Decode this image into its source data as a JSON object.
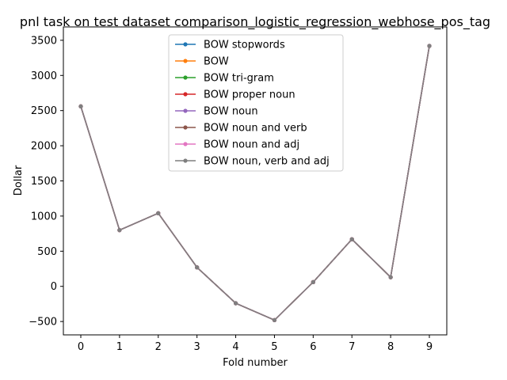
{
  "chart_data": {
    "type": "line",
    "title": "pnl task on test dataset comparison_logistic_regression_webhose_pos_tag",
    "xlabel": "Fold number",
    "ylabel": "Dollar",
    "x": [
      0,
      1,
      2,
      3,
      4,
      5,
      6,
      7,
      8,
      9
    ],
    "xticks": [
      "0",
      "1",
      "2",
      "3",
      "4",
      "5",
      "6",
      "7",
      "8",
      "9"
    ],
    "yticks": [
      "−500",
      "0",
      "500",
      "1000",
      "1500",
      "2000",
      "2500",
      "3000",
      "3500"
    ],
    "ytick_values": [
      -500,
      0,
      500,
      1000,
      1500,
      2000,
      2500,
      3000,
      3500
    ],
    "xlim": [
      -0.45,
      9.45
    ],
    "ylim": [
      -690,
      3690
    ],
    "grid": false,
    "legend_position": "upper center",
    "series": [
      {
        "name": "BOW stopwords",
        "color": "#1f77b4",
        "values": [
          2560,
          800,
          1040,
          270,
          -240,
          -480,
          60,
          670,
          130,
          3420
        ]
      },
      {
        "name": "BOW",
        "color": "#ff7f0e",
        "values": [
          2560,
          800,
          1040,
          270,
          -240,
          -480,
          60,
          670,
          130,
          3420
        ]
      },
      {
        "name": "BOW tri-gram",
        "color": "#2ca02c",
        "values": [
          2560,
          800,
          1040,
          270,
          -240,
          -480,
          60,
          670,
          130,
          3420
        ]
      },
      {
        "name": "BOW proper noun",
        "color": "#d62728",
        "values": [
          2560,
          800,
          1040,
          270,
          -240,
          -480,
          60,
          670,
          130,
          3420
        ]
      },
      {
        "name": "BOW noun",
        "color": "#9467bd",
        "values": [
          2560,
          800,
          1040,
          270,
          -240,
          -480,
          60,
          670,
          130,
          3420
        ]
      },
      {
        "name": "BOW noun and verb",
        "color": "#8c564b",
        "values": [
          2560,
          800,
          1040,
          270,
          -240,
          -480,
          60,
          670,
          130,
          3420
        ]
      },
      {
        "name": "BOW noun and adj",
        "color": "#e377c2",
        "values": [
          2560,
          800,
          1040,
          270,
          -240,
          -480,
          60,
          670,
          130,
          3420
        ]
      },
      {
        "name": "BOW noun, verb and adj",
        "color": "#7f7f7f",
        "values": [
          2560,
          800,
          1040,
          270,
          -240,
          -480,
          60,
          670,
          130,
          3420
        ]
      }
    ]
  }
}
